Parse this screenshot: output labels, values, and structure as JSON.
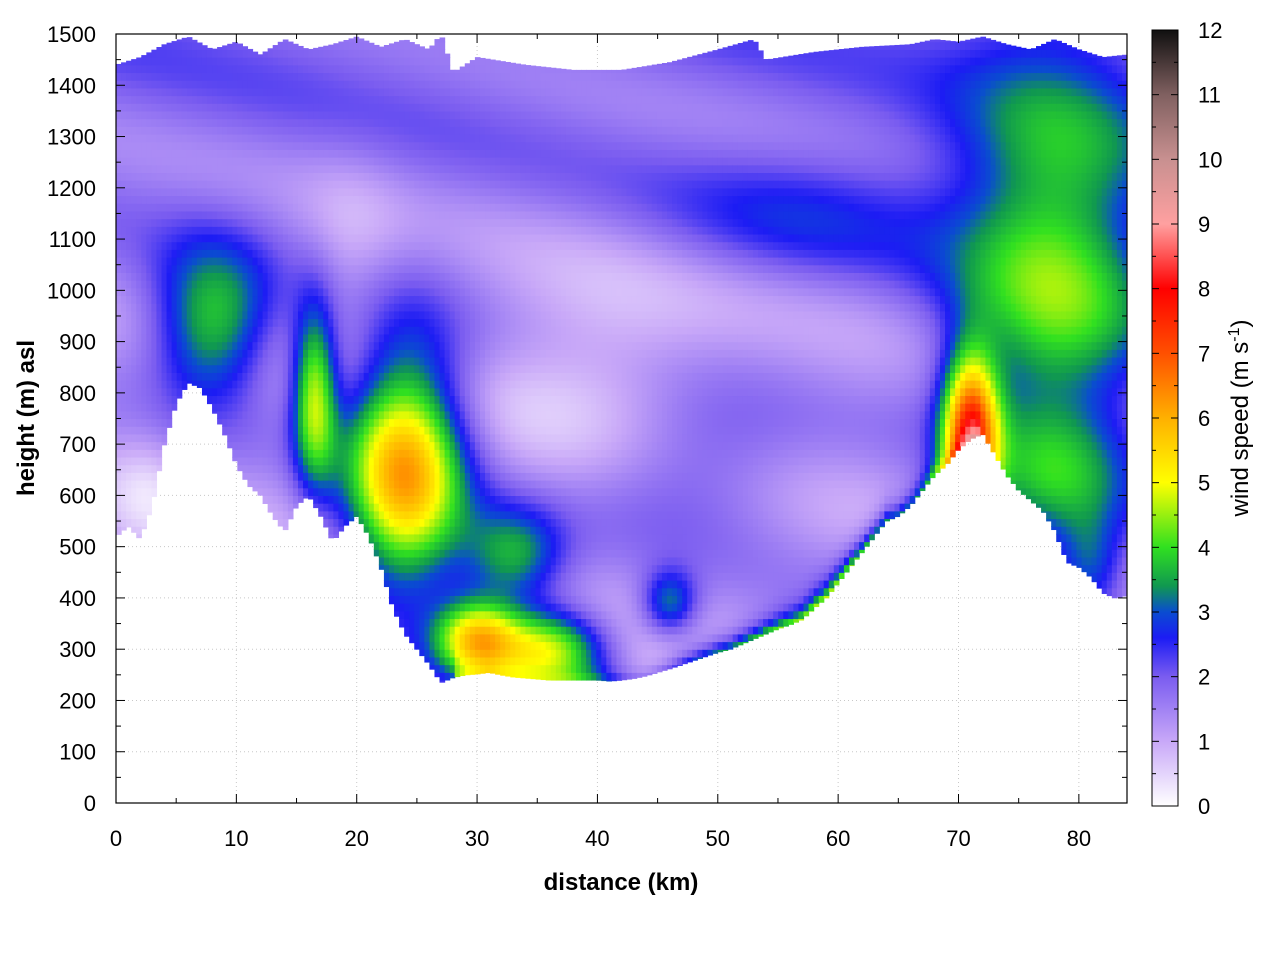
{
  "chart_data": {
    "type": "heatmap",
    "title": "",
    "xlabel": "distance (km)",
    "ylabel": "height (m) asl",
    "xlim": [
      0,
      84
    ],
    "ylim": [
      0,
      1500
    ],
    "x_ticks": [
      0,
      10,
      20,
      30,
      40,
      50,
      60,
      70,
      80
    ],
    "y_ticks": [
      0,
      100,
      200,
      300,
      400,
      500,
      600,
      700,
      800,
      900,
      1000,
      1100,
      1200,
      1300,
      1400,
      1500
    ],
    "grid": true,
    "colorbar": {
      "label": "wind speed (m s",
      "label_sup": "-1",
      "label_end": ")",
      "range": [
        0,
        12
      ],
      "ticks": [
        0,
        1,
        2,
        3,
        4,
        5,
        6,
        7,
        8,
        9,
        10,
        11,
        12
      ],
      "stops": [
        {
          "value": 0,
          "color": "#ffffff"
        },
        {
          "value": 1,
          "color": "#c8a8f8"
        },
        {
          "value": 2,
          "color": "#7a5cf0"
        },
        {
          "value": 2.6,
          "color": "#1c1cf4"
        },
        {
          "value": 3,
          "color": "#0a4cd0"
        },
        {
          "value": 3.4,
          "color": "#109850"
        },
        {
          "value": 4,
          "color": "#30e020"
        },
        {
          "value": 5,
          "color": "#ffff00"
        },
        {
          "value": 6,
          "color": "#ffb000"
        },
        {
          "value": 7,
          "color": "#ff5000"
        },
        {
          "value": 8,
          "color": "#ff0000"
        },
        {
          "value": 9,
          "color": "#ffa0a0"
        },
        {
          "value": 10,
          "color": "#c89090"
        },
        {
          "value": 11,
          "color": "#806060"
        },
        {
          "value": 12,
          "color": "#101010"
        }
      ]
    },
    "terrain": {
      "x": [
        0,
        1,
        2,
        3,
        4,
        5,
        6,
        7,
        8,
        9,
        10,
        11,
        12,
        13,
        14,
        15,
        16,
        17,
        18,
        19,
        20,
        21,
        22,
        23,
        24,
        25,
        26,
        27,
        28,
        29,
        30,
        31,
        32,
        33,
        34,
        35,
        36,
        37,
        38,
        39,
        40,
        41,
        42,
        43,
        44,
        45,
        46,
        47,
        48,
        49,
        50,
        51,
        52,
        53,
        54,
        55,
        56,
        57,
        58,
        59,
        60,
        61,
        62,
        63,
        64,
        65,
        66,
        67,
        68,
        69,
        70,
        71,
        72,
        73,
        74,
        75,
        76,
        77,
        78,
        79,
        80,
        81,
        82,
        83,
        84
      ],
      "height": [
        520,
        540,
        515,
        580,
        700,
        780,
        820,
        810,
        770,
        720,
        660,
        620,
        600,
        560,
        530,
        580,
        600,
        560,
        510,
        540,
        560,
        520,
        460,
        380,
        330,
        300,
        270,
        235,
        245,
        250,
        252,
        255,
        250,
        246,
        244,
        242,
        240,
        240,
        240,
        240,
        240,
        238,
        240,
        243,
        248,
        255,
        262,
        270,
        278,
        286,
        294,
        300,
        310,
        320,
        330,
        340,
        348,
        358,
        380,
        400,
        430,
        460,
        490,
        520,
        550,
        560,
        580,
        610,
        640,
        660,
        690,
        710,
        720,
        680,
        640,
        610,
        590,
        570,
        530,
        470,
        460,
        440,
        410,
        400,
        405
      ]
    },
    "data_top": {
      "x": [
        0,
        2,
        4,
        6,
        8,
        10,
        12,
        14,
        16,
        18,
        20,
        22,
        24,
        26,
        27,
        28,
        30,
        34,
        38,
        42,
        46,
        50,
        53,
        54,
        58,
        62,
        66,
        68,
        70,
        72,
        74,
        76,
        78,
        80,
        82,
        84
      ],
      "height": [
        1440,
        1455,
        1480,
        1495,
        1470,
        1485,
        1460,
        1490,
        1470,
        1480,
        1495,
        1475,
        1490,
        1470,
        1500,
        1425,
        1455,
        1440,
        1430,
        1430,
        1445,
        1470,
        1490,
        1450,
        1465,
        1475,
        1480,
        1490,
        1485,
        1495,
        1480,
        1470,
        1490,
        1470,
        1455,
        1460
      ]
    }
  }
}
